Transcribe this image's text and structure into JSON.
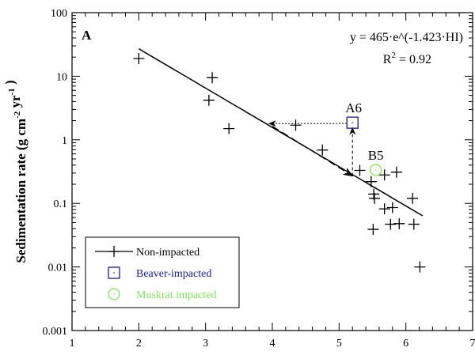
{
  "chart_data": {
    "type": "scatter",
    "panel_label": "A",
    "xlabel": "",
    "ylabel": "Sedimentation rate (g cm⁻² yr⁻¹)",
    "ylabel_parts": {
      "main": "Sedimentation rate (g cm",
      "sup1": "-2",
      "mid": "  yr",
      "sup2": "-1",
      "end": " )"
    },
    "xlim": [
      1,
      7
    ],
    "ylim": [
      0.001,
      100
    ],
    "yscale": "log",
    "xticks": [
      "1",
      "2",
      "3",
      "4",
      "5",
      "6",
      "7"
    ],
    "yticks": [
      "0.001",
      "0.01",
      "0.1",
      "1",
      "10",
      "100"
    ],
    "equation": "y = 465·e^(-1.423·HI)",
    "r2_label": "R",
    "r2_sup": "2",
    "r2_value": " = 0.92",
    "fit": {
      "a": 465,
      "b": -1.423,
      "x_range": [
        2,
        6.25
      ]
    },
    "series": [
      {
        "name": "Non-impacted",
        "marker": "plus",
        "color": "#000000",
        "points": [
          [
            2.0,
            19
          ],
          [
            3.1,
            9.5
          ],
          [
            3.05,
            4.2
          ],
          [
            3.35,
            1.5
          ],
          [
            4.35,
            1.7
          ],
          [
            4.75,
            0.69
          ],
          [
            5.31,
            0.33
          ],
          [
            5.48,
            0.22
          ],
          [
            5.52,
            0.14
          ],
          [
            5.53,
            0.12
          ],
          [
            5.68,
            0.082
          ],
          [
            5.8,
            0.086
          ],
          [
            5.68,
            0.28
          ],
          [
            5.86,
            0.31
          ],
          [
            6.1,
            0.12
          ],
          [
            5.77,
            0.047
          ],
          [
            5.9,
            0.048
          ],
          [
            6.12,
            0.047
          ],
          [
            5.51,
            0.039
          ],
          [
            6.21,
            0.01
          ]
        ]
      },
      {
        "name": "Beaver-impacted",
        "marker": "square",
        "color": "#1a1aa8",
        "points": [
          [
            5.2,
            1.86
          ]
        ],
        "label": "A6"
      },
      {
        "name": "Muskrat impacted",
        "marker": "circle",
        "color": "#7ee85a",
        "points": [
          [
            5.55,
            0.335
          ]
        ],
        "label": "B5"
      }
    ],
    "annotations": {
      "horizontal_arrow": {
        "from": [
          5.2,
          1.8
        ],
        "to": [
          3.95,
          1.8
        ]
      },
      "vertical_arrow": {
        "from": [
          5.2,
          0.27
        ],
        "to": [
          5.2,
          1.55
        ]
      },
      "dashed_line": {
        "from": [
          4.0,
          1.78
        ],
        "to": [
          5.2,
          0.27
        ]
      }
    },
    "legend_position": "bottom-left"
  }
}
